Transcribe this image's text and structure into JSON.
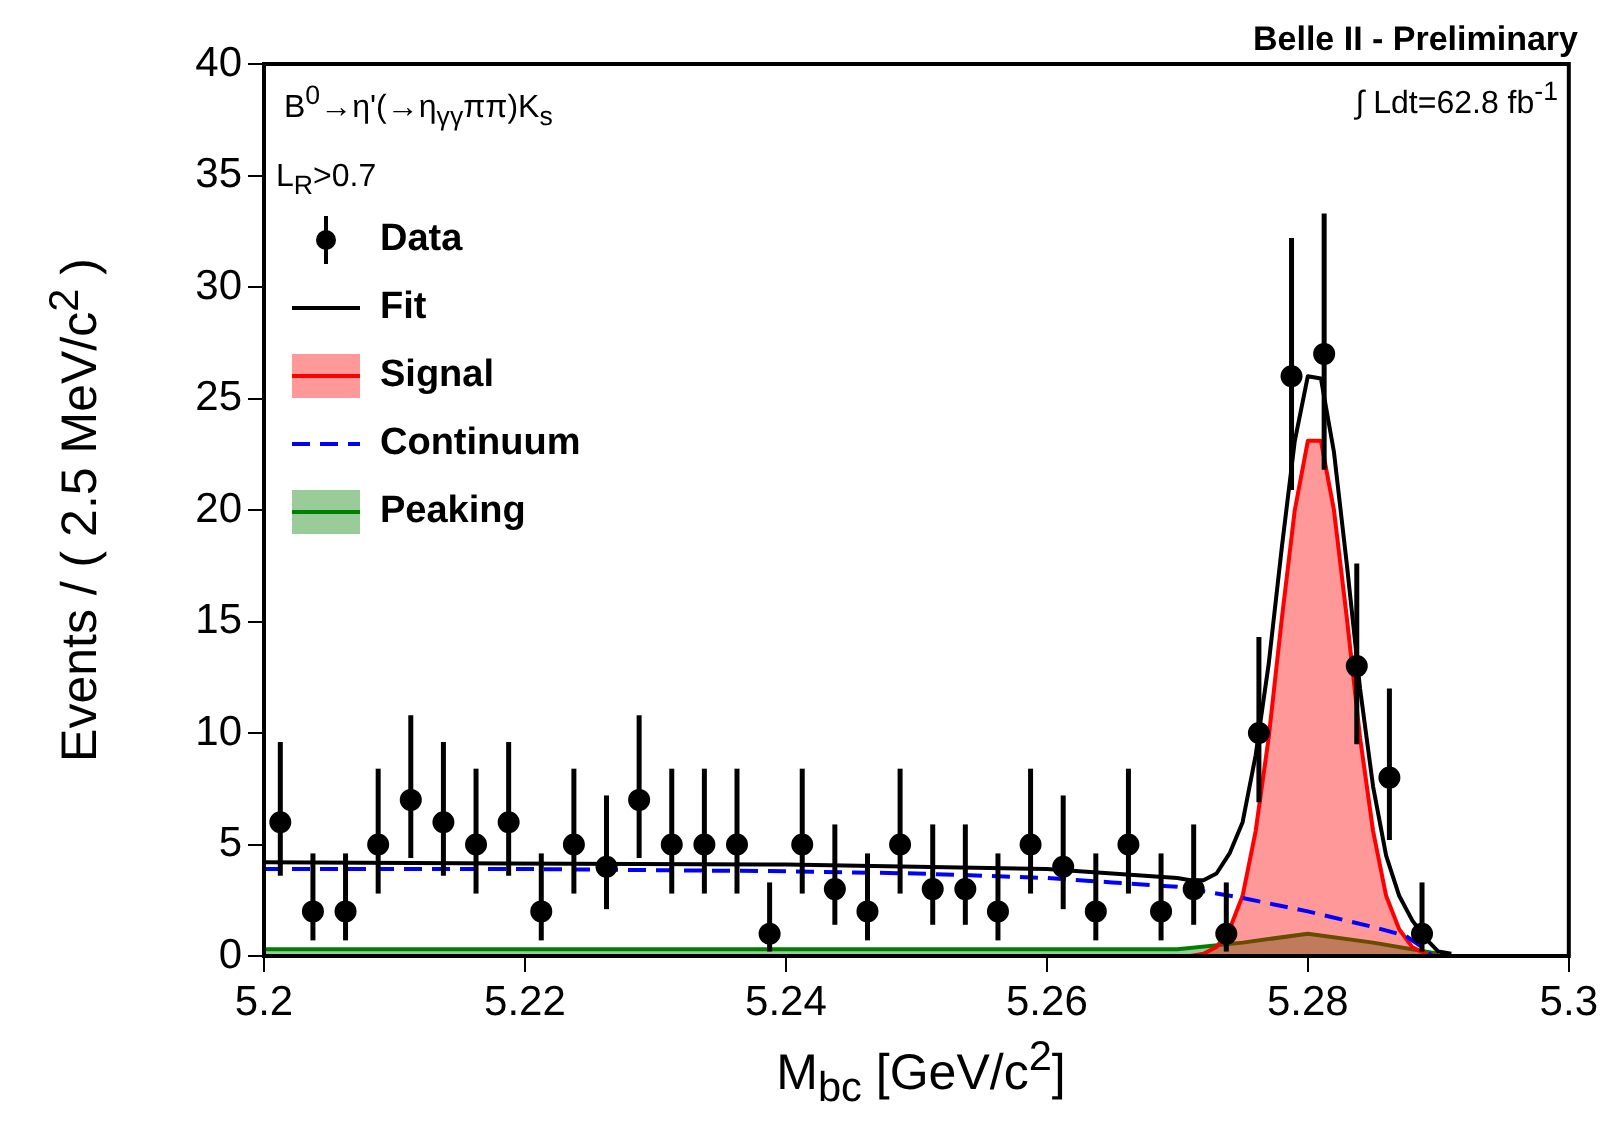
{
  "chart_data": {
    "type": "scatter",
    "title": "Belle II - Preliminary",
    "xlabel": "M$_{bc}$ [GeV/c$^{2}$]",
    "ylabel": "Events / ( 2.5 MeV/c$^{2}$ )",
    "annotations": [
      "B$^{0}$→η'(→η$_{γγ}$ππ)K$_{s}$",
      "L$_{R}$>0.7",
      "∫ Ldt=62.8 fb$^{-1}$"
    ],
    "xlim": [
      5.2,
      5.3
    ],
    "xticks": [
      5.2,
      5.22,
      5.24,
      5.26,
      5.28,
      5.3
    ],
    "ylim": [
      0,
      40
    ],
    "yticks": [
      0,
      5,
      10,
      15,
      20,
      25,
      30,
      35,
      40
    ],
    "legend": "top left",
    "series": [
      {
        "name": "Data",
        "marker": "circle",
        "color": "#000000",
        "x": [
          5.20125,
          5.20375,
          5.20625,
          5.20875,
          5.21125,
          5.21375,
          5.21625,
          5.21875,
          5.22125,
          5.22375,
          5.22625,
          5.22875,
          5.23125,
          5.23375,
          5.23625,
          5.23875,
          5.24125,
          5.24375,
          5.24625,
          5.24875,
          5.25125,
          5.25375,
          5.25625,
          5.25875,
          5.26125,
          5.26375,
          5.26625,
          5.26875,
          5.27125,
          5.27375,
          5.27625,
          5.27875,
          5.28125,
          5.28375,
          5.28625,
          5.28875
        ],
        "values": [
          6,
          2,
          2,
          5,
          7,
          6,
          5,
          6,
          2,
          5,
          4,
          7,
          5,
          5,
          5,
          1,
          5,
          3,
          2,
          5,
          3,
          3,
          2,
          5,
          4,
          2,
          5,
          2,
          3,
          1,
          10,
          26,
          27,
          13,
          8,
          1
        ],
        "errors": [
          [
            3.6,
            9.6
          ],
          [
            0.7,
            4.6
          ],
          [
            0.7,
            4.6
          ],
          [
            2.8,
            8.4
          ],
          [
            4.4,
            10.8
          ],
          [
            3.6,
            9.6
          ],
          [
            2.8,
            8.4
          ],
          [
            3.6,
            9.6
          ],
          [
            0.7,
            4.6
          ],
          [
            2.8,
            8.4
          ],
          [
            2.1,
            7.2
          ],
          [
            4.4,
            10.8
          ],
          [
            2.8,
            8.4
          ],
          [
            2.8,
            8.4
          ],
          [
            2.8,
            8.4
          ],
          [
            0.2,
            3.3
          ],
          [
            2.8,
            8.4
          ],
          [
            1.4,
            5.9
          ],
          [
            0.7,
            4.6
          ],
          [
            2.8,
            8.4
          ],
          [
            1.4,
            5.9
          ],
          [
            1.4,
            5.9
          ],
          [
            0.7,
            4.6
          ],
          [
            2.8,
            8.4
          ],
          [
            2.1,
            7.2
          ],
          [
            0.7,
            4.6
          ],
          [
            2.8,
            8.4
          ],
          [
            0.7,
            4.6
          ],
          [
            1.4,
            5.9
          ],
          [
            0.2,
            3.3
          ],
          [
            6.9,
            14.3
          ],
          [
            20.9,
            32.2
          ],
          [
            21.8,
            33.3
          ],
          [
            9.5,
            17.6
          ],
          [
            5.2,
            12.0
          ],
          [
            0.2,
            3.3
          ]
        ]
      },
      {
        "name": "Fit",
        "type": "line",
        "line_style": "solid",
        "color": "#000000",
        "x": [
          5.2,
          5.24,
          5.26,
          5.265,
          5.27,
          5.271,
          5.272,
          5.273,
          5.274,
          5.275,
          5.276,
          5.277,
          5.278,
          5.279,
          5.28,
          5.281,
          5.282,
          5.283,
          5.284,
          5.285,
          5.286,
          5.287,
          5.288,
          5.289,
          5.29,
          5.291
        ],
        "values": [
          4.2,
          4.1,
          3.9,
          3.7,
          3.5,
          3.4,
          3.4,
          3.7,
          4.6,
          6.0,
          9.0,
          13.1,
          18.3,
          23.1,
          26.0,
          25.9,
          22.6,
          17.5,
          12.0,
          7.6,
          4.5,
          2.7,
          1.6,
          0.8,
          0.2,
          0.1
        ]
      },
      {
        "name": "Signal",
        "type": "area",
        "color": "#ff0000",
        "x": [
          5.27,
          5.271,
          5.272,
          5.273,
          5.274,
          5.275,
          5.276,
          5.277,
          5.278,
          5.279,
          5.28,
          5.281,
          5.282,
          5.283,
          5.284,
          5.285,
          5.286,
          5.287,
          5.288,
          5.289,
          5.29,
          5.291
        ],
        "values": [
          0,
          0,
          0.1,
          0.4,
          1.2,
          2.7,
          5.6,
          9.8,
          15.1,
          20.0,
          23.1,
          23.1,
          20.0,
          15.1,
          9.8,
          5.6,
          2.7,
          1.2,
          0.4,
          0.1,
          0,
          0
        ]
      },
      {
        "name": "Continuum",
        "type": "line",
        "line_style": "dashed",
        "color": "#0000ff",
        "x": [
          5.2,
          5.22,
          5.24,
          5.25,
          5.26,
          5.265,
          5.27,
          5.275,
          5.28,
          5.285,
          5.2875,
          5.289,
          5.2895
        ],
        "values": [
          3.9,
          3.9,
          3.8,
          3.7,
          3.5,
          3.3,
          3.1,
          2.6,
          2.0,
          1.3,
          0.9,
          0.3,
          0
        ]
      },
      {
        "name": "Peaking",
        "type": "area",
        "color": "#008000",
        "x": [
          5.2,
          5.27,
          5.275,
          5.28,
          5.285,
          5.29
        ],
        "values": [
          0.3,
          0.3,
          0.6,
          1.0,
          0.6,
          0.1
        ]
      }
    ]
  }
}
